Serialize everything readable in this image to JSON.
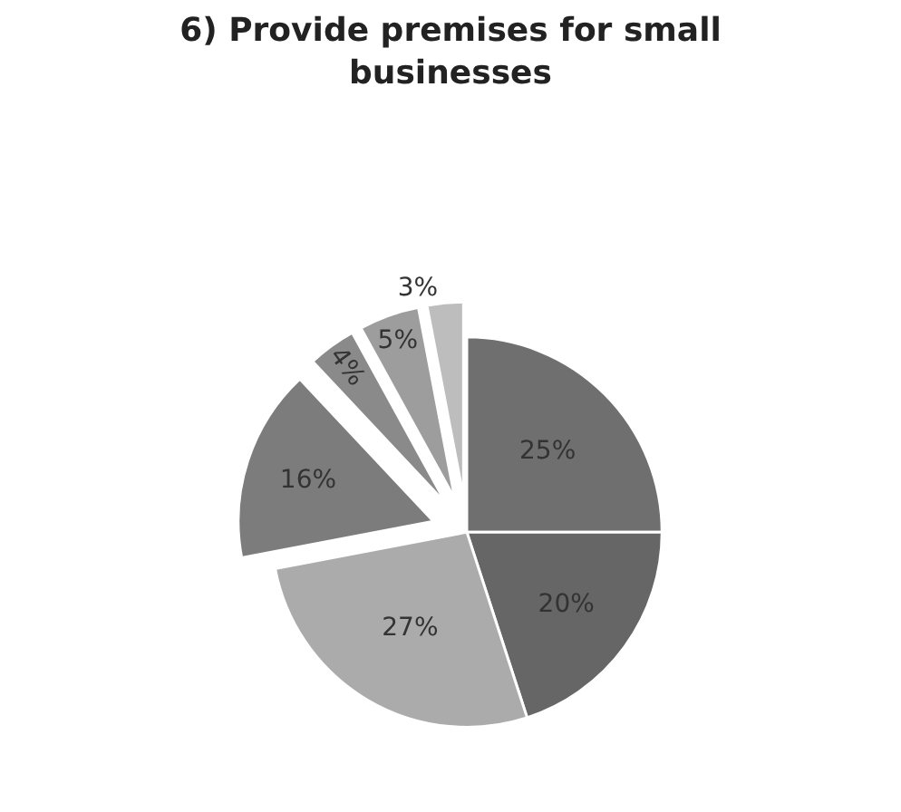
{
  "chart_data": {
    "type": "pie",
    "title": "6) Provide premises for small businesses",
    "categories": [
      null,
      null,
      null,
      null,
      null,
      null,
      null
    ],
    "values": [
      25,
      20,
      27,
      16,
      4,
      5,
      3
    ],
    "value_labels": [
      "25%",
      "20%",
      "27%",
      "16%",
      "4%",
      "5%",
      "3%"
    ],
    "colors": [
      "#6f6f6f",
      "#666666",
      "#ababab",
      "#7c7c7c",
      "#8a8a8a",
      "#9d9d9d",
      "#bdbdbd"
    ],
    "legend": false
  }
}
